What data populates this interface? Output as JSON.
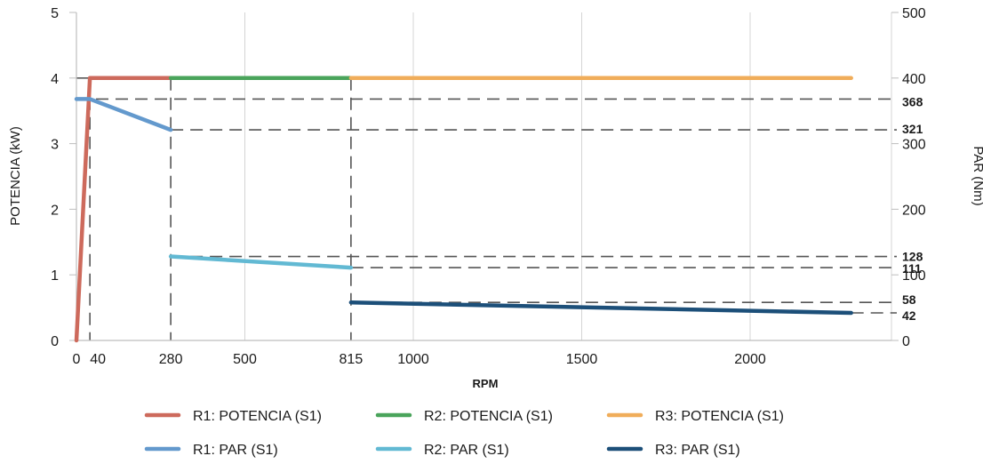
{
  "chart_data": {
    "type": "line",
    "xlabel": "RPM",
    "ylabel_left": "POTENCIA (kW)",
    "ylabel_right": "PAR (Nm)",
    "xlim": [
      0,
      2390
    ],
    "ylim_left": [
      0,
      5
    ],
    "ylim_right": [
      0,
      500
    ],
    "x_ticks_regular": [
      500,
      1000,
      1500,
      2000
    ],
    "x_ticks_bold": [
      280,
      815
    ],
    "x_ticks_extra": [
      0,
      40
    ],
    "y_ticks_left": [
      0,
      1,
      2,
      3,
      4,
      5
    ],
    "y_ticks_right": [
      0,
      100,
      200,
      300,
      400,
      500
    ],
    "y_ticks_right_bold": [
      368,
      321,
      128,
      111,
      58,
      42
    ],
    "grid": "vertical",
    "legend_position": "bottom",
    "series": [
      {
        "name": "R1: POTENCIA (S1)",
        "axis": "left",
        "color": "#cd6a5c",
        "x": [
          0,
          40,
          280
        ],
        "y": [
          0,
          4,
          4
        ]
      },
      {
        "name": "R2: POTENCIA (S1)",
        "axis": "left",
        "color": "#4aa45b",
        "x": [
          280,
          815
        ],
        "y": [
          4,
          4
        ]
      },
      {
        "name": "R3: POTENCIA (S1)",
        "axis": "left",
        "color": "#f0ad5a",
        "x": [
          815,
          2300
        ],
        "y": [
          4,
          4
        ]
      },
      {
        "name": "R1: PAR (S1)",
        "axis": "right",
        "color": "#6399cd",
        "x": [
          0,
          40,
          280
        ],
        "y": [
          368,
          368,
          321
        ]
      },
      {
        "name": "R2: PAR (S1)",
        "axis": "right",
        "color": "#62b9d3",
        "x": [
          280,
          815
        ],
        "y": [
          128,
          111
        ]
      },
      {
        "name": "R3: PAR (S1)",
        "axis": "right",
        "color": "#1c4f79",
        "x": [
          815,
          2300
        ],
        "y": [
          58,
          42
        ]
      }
    ],
    "reference_vlines": [
      40,
      280,
      815
    ],
    "reference_hlines": [
      {
        "value": 368,
        "from_x": 0
      },
      {
        "value": 321,
        "from_x": 280
      },
      {
        "value": 128,
        "from_x": 280
      },
      {
        "value": 111,
        "from_x": 815
      },
      {
        "value": 58,
        "from_x": 815
      },
      {
        "value": 42,
        "from_x": 2300
      }
    ]
  }
}
